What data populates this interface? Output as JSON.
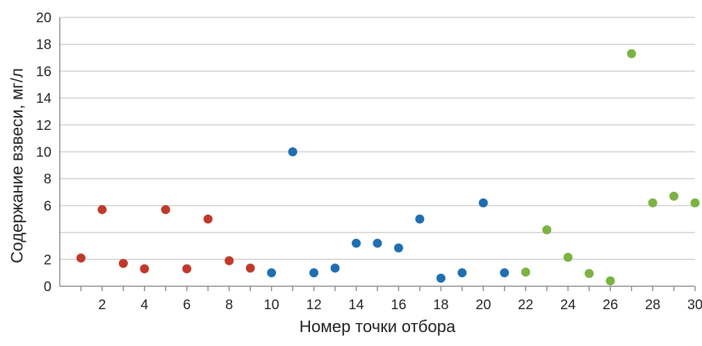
{
  "chart_data": {
    "type": "scatter",
    "xlabel": "Номер точки отбора",
    "ylabel": "Содержание взвеси, мг/л",
    "xlim": [
      0,
      30
    ],
    "ylim": [
      0,
      20
    ],
    "x_ticks": [
      2,
      4,
      6,
      8,
      10,
      12,
      14,
      16,
      18,
      20,
      22,
      24,
      26,
      28,
      30
    ],
    "y_ticks": [
      "0",
      "2",
      "",
      "6",
      "8",
      "10",
      "12",
      "14",
      "16",
      "18",
      "20"
    ],
    "y_tick_values": [
      0,
      2,
      4,
      6,
      8,
      10,
      12,
      14,
      16,
      18,
      20
    ],
    "grid": true,
    "series": [
      {
        "color": "#c0392b",
        "points": [
          [
            1,
            2.1
          ],
          [
            2,
            5.7
          ],
          [
            3,
            1.7
          ],
          [
            4,
            1.3
          ],
          [
            5,
            5.7
          ],
          [
            6,
            1.3
          ],
          [
            7,
            5.0
          ],
          [
            8,
            1.9
          ],
          [
            9,
            1.35
          ]
        ]
      },
      {
        "color": "#1f6fb2",
        "points": [
          [
            10,
            1.0
          ],
          [
            11,
            10.0
          ],
          [
            12,
            1.0
          ],
          [
            13,
            1.35
          ],
          [
            14,
            3.2
          ],
          [
            15,
            3.2
          ],
          [
            16,
            2.85
          ],
          [
            17,
            5.0
          ],
          [
            18,
            0.6
          ],
          [
            19,
            1.0
          ],
          [
            20,
            6.2
          ],
          [
            21,
            1.0
          ]
        ]
      },
      {
        "color": "#7cb342",
        "points": [
          [
            22,
            1.05
          ],
          [
            23,
            4.2
          ],
          [
            24,
            2.15
          ],
          [
            25,
            0.95
          ],
          [
            26,
            0.4
          ],
          [
            27,
            17.3
          ],
          [
            28,
            6.2
          ],
          [
            29,
            6.7
          ],
          [
            30,
            6.2
          ]
        ]
      }
    ]
  }
}
